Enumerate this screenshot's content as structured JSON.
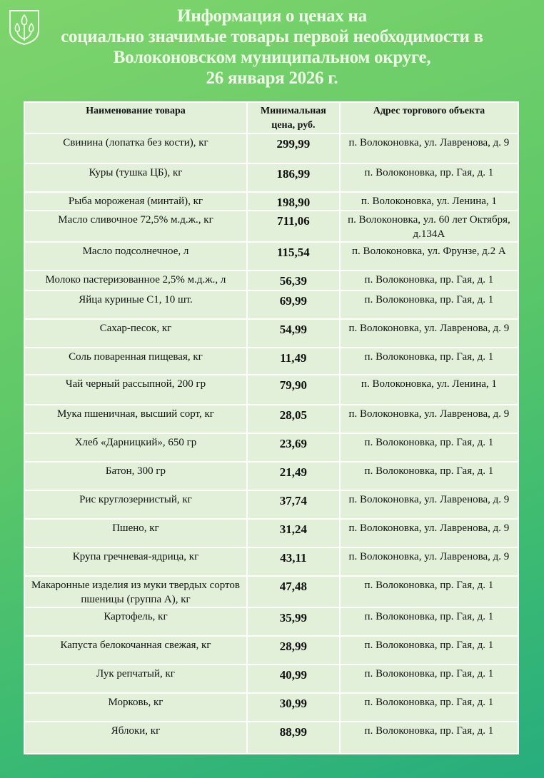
{
  "title": [
    "Информация о ценах на",
    "социально значимые товары первой необходимости в",
    "Волоконовском муниципальном округе,",
    "26 января 2026 г."
  ],
  "colors": {
    "background": "#5ec868",
    "table": "#e2f0d9",
    "title": "#eef8e6"
  },
  "logo": "coat-of-arms-tulips",
  "table": {
    "headers": [
      "Наименование товара",
      "Минимальная цена, руб.",
      "Адрес торгового объекта"
    ],
    "rows": [
      {
        "name": "Свинина (лопатка без кости), кг",
        "price": "299,99",
        "address": "п. Волоконовка, ул. Лавренова, д. 9"
      },
      {
        "name": "Куры (тушка ЦБ), кг",
        "price": "186,99",
        "address": "п. Волоконовка, пр. Гая, д. 1"
      },
      {
        "name": "Рыба мороженая (минтай), кг",
        "price": "198,90",
        "address": "п. Волоконовка, ул. Ленина, 1"
      },
      {
        "name": "Масло сливочное 72,5% м.д.ж., кг",
        "price": "711,06",
        "address": "п. Волоконовка, ул. 60 лет Октября, д.134А"
      },
      {
        "name": "Масло подсолнечное, л",
        "price": "115,54",
        "address": "п. Волоконовка, ул. Фрунзе, д.2 А"
      },
      {
        "name": "Молоко пастеризованное 2,5% м.д.ж., л",
        "price": "56,39",
        "address": "п. Волоконовка, пр. Гая, д. 1"
      },
      {
        "name": "Яйца куриные С1, 10 шт.",
        "price": "69,99",
        "address": "п. Волоконовка, пр. Гая, д. 1"
      },
      {
        "name": "Сахар-песок, кг",
        "price": "54,99",
        "address": "п. Волоконовка, ул. Лавренова, д. 9"
      },
      {
        "name": "Соль поваренная пищевая, кг",
        "price": "11,49",
        "address": "п. Волоконовка, пр. Гая, д. 1"
      },
      {
        "name": "Чай черный рассыпной, 200 гр",
        "price": "79,90",
        "address": "п. Волоконовка, ул. Ленина, 1"
      },
      {
        "name": "Мука пшеничная, высший сорт, кг",
        "price": "28,05",
        "address": "п. Волоконовка, ул. Лавренова, д. 9"
      },
      {
        "name": "Хлеб «Дарницкий», 650 гр",
        "price": "23,69",
        "address": "п. Волоконовка, пр. Гая, д. 1"
      },
      {
        "name": "Батон, 300 гр",
        "price": "21,49",
        "address": "п. Волоконовка, пр. Гая, д. 1"
      },
      {
        "name": "Рис круглозернистый, кг",
        "price": "37,74",
        "address": "п. Волоконовка, ул. Лавренова, д. 9"
      },
      {
        "name": "Пшено, кг",
        "price": "31,24",
        "address": "п. Волоконовка, ул. Лавренова, д. 9"
      },
      {
        "name": "Крупа гречневая-ядрица, кг",
        "price": "43,11",
        "address": "п. Волоконовка, ул. Лавренова, д. 9"
      },
      {
        "name": "Макаронные изделия из муки твердых сортов пшеницы (группа А), кг",
        "price": "47,48",
        "address": "п. Волоконовка, пр. Гая, д. 1"
      },
      {
        "name": "Картофель, кг",
        "price": "35,99",
        "address": "п. Волоконовка, пр. Гая, д. 1"
      },
      {
        "name": "Капуста белокочанная свежая, кг",
        "price": "28,99",
        "address": "п. Волоконовка, пр. Гая, д. 1"
      },
      {
        "name": "Лук репчатый, кг",
        "price": "40,99",
        "address": "п. Волоконовка, пр. Гая, д. 1"
      },
      {
        "name": "Морковь, кг",
        "price": "30,99",
        "address": "п. Волоконовка, пр. Гая, д. 1"
      },
      {
        "name": "Яблоки, кг",
        "price": "88,99",
        "address": "п. Волоконовка, пр. Гая, д. 1"
      }
    ]
  }
}
